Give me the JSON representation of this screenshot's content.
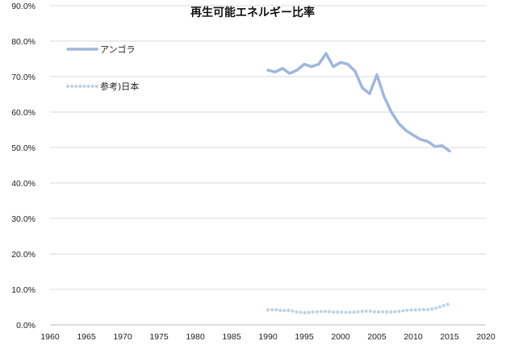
{
  "chart_data": {
    "type": "line",
    "title": "再生可能エネルギー比率",
    "xlim": [
      1960,
      2020
    ],
    "ylim": [
      0,
      90
    ],
    "x_ticks": [
      "1960",
      "1965",
      "1970",
      "1975",
      "1980",
      "1985",
      "1990",
      "1995",
      "2000",
      "2005",
      "2010",
      "2015",
      "2020"
    ],
    "y_ticks": [
      "0.0%",
      "10.0%",
      "20.0%",
      "30.0%",
      "40.0%",
      "50.0%",
      "60.0%",
      "70.0%",
      "80.0%",
      "90.0%"
    ],
    "grid": true,
    "legend_position": "top-left",
    "series": [
      {
        "name": "アンゴラ",
        "color": "#9fb7dc",
        "style": "solid",
        "x": [
          1990,
          1991,
          1992,
          1993,
          1994,
          1995,
          1996,
          1997,
          1998,
          1999,
          2000,
          2001,
          2002,
          2003,
          2004,
          2005,
          2006,
          2007,
          2008,
          2009,
          2010,
          2011,
          2012,
          2013,
          2014,
          2015
        ],
        "y": [
          71.8,
          71.3,
          72.3,
          70.9,
          71.8,
          73.5,
          72.8,
          73.5,
          76.5,
          72.8,
          74.0,
          73.5,
          71.5,
          66.8,
          65.2,
          70.5,
          64.3,
          60.0,
          56.8,
          54.8,
          53.5,
          52.3,
          51.7,
          50.3,
          50.5,
          49.0
        ]
      },
      {
        "name": "参考)日本",
        "color": "#bcd3e6",
        "style": "dotted",
        "x": [
          1990,
          1991,
          1992,
          1993,
          1994,
          1995,
          1996,
          1997,
          1998,
          1999,
          2000,
          2001,
          2002,
          2003,
          2004,
          2005,
          2006,
          2007,
          2008,
          2009,
          2010,
          2011,
          2012,
          2013,
          2014,
          2015
        ],
        "y": [
          4.2,
          4.3,
          4.0,
          4.1,
          3.6,
          3.4,
          3.6,
          3.7,
          3.8,
          3.6,
          3.6,
          3.5,
          3.6,
          3.8,
          3.9,
          3.6,
          3.7,
          3.6,
          3.8,
          4.1,
          4.2,
          4.3,
          4.3,
          4.6,
          5.3,
          5.9
        ]
      }
    ]
  }
}
